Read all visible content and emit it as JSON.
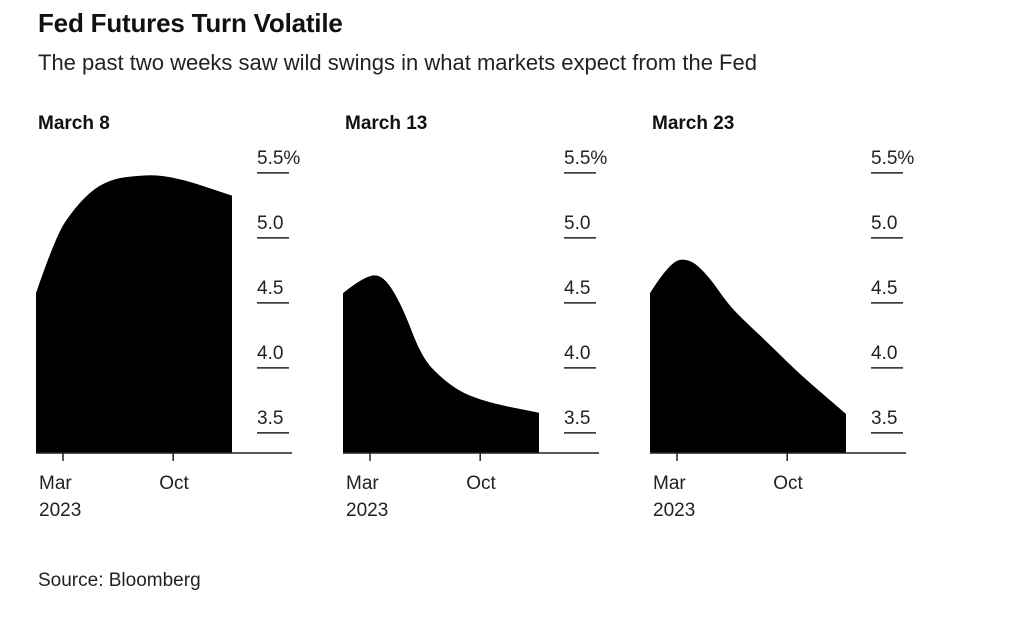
{
  "header": {
    "title": "Fed Futures Turn Volatile",
    "subtitle": "The past two weeks saw wild swings in what markets expect from the Fed"
  },
  "footer": {
    "source": "Source: Bloomberg"
  },
  "colors": {
    "fill": "#000000",
    "text": "#222222",
    "axis": "#222222"
  },
  "chart_data": [
    {
      "type": "area",
      "title": "March 8",
      "x": [
        "2023-03",
        "2023-04",
        "2023-05",
        "2023-06",
        "2023-07",
        "2023-08",
        "2023-09",
        "2023-10",
        "2023-11",
        "2023-12",
        "2024-01"
      ],
      "values": [
        4.56,
        5.0,
        5.22,
        5.37,
        5.44,
        5.46,
        5.47,
        5.45,
        5.41,
        5.36,
        5.31
      ],
      "x_tick_labels": [
        "Mar\n2023",
        "Oct"
      ],
      "y_ticks": [
        3.5,
        4.0,
        4.5,
        5.0,
        5.5
      ],
      "y_tick_labels": [
        "3.5",
        "4.0",
        "4.5",
        "5.0",
        "5.5%"
      ],
      "ylim": [
        3.33,
        5.6
      ],
      "xlabel": "",
      "ylabel": ""
    },
    {
      "type": "area",
      "title": "March 13",
      "x": [
        "2023-03",
        "2023-04",
        "2023-05",
        "2023-06",
        "2023-07",
        "2023-08",
        "2023-09",
        "2023-10",
        "2023-11",
        "2023-12",
        "2024-01"
      ],
      "values": [
        4.56,
        4.68,
        4.71,
        4.47,
        4.07,
        3.91,
        3.8,
        3.74,
        3.7,
        3.67,
        3.64
      ],
      "x_tick_labels": [
        "Mar\n2023",
        "Oct"
      ],
      "y_ticks": [
        3.5,
        4.0,
        4.5,
        5.0,
        5.5
      ],
      "y_tick_labels": [
        "3.5",
        "4.0",
        "4.5",
        "5.0",
        "5.5%"
      ],
      "ylim": [
        3.33,
        5.6
      ],
      "xlabel": "",
      "ylabel": ""
    },
    {
      "type": "area",
      "title": "March 23",
      "x": [
        "2023-03",
        "2023-04",
        "2023-05",
        "2023-06",
        "2023-07",
        "2023-08",
        "2023-09",
        "2023-10",
        "2023-11",
        "2023-12",
        "2024-01"
      ],
      "values": [
        4.56,
        4.8,
        4.83,
        4.69,
        4.47,
        4.32,
        4.18,
        4.03,
        3.89,
        3.76,
        3.63
      ],
      "x_tick_labels": [
        "Mar\n2023",
        "Oct"
      ],
      "y_ticks": [
        3.5,
        4.0,
        4.5,
        5.0,
        5.5
      ],
      "y_tick_labels": [
        "3.5",
        "4.0",
        "4.5",
        "5.0",
        "5.5%"
      ],
      "ylim": [
        3.33,
        5.6
      ],
      "xlabel": "",
      "ylabel": ""
    }
  ]
}
